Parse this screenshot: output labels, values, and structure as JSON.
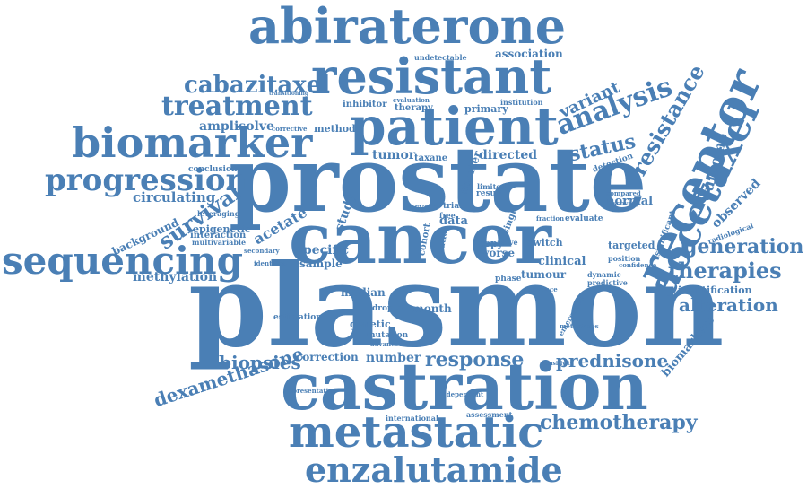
{
  "color": "#4a7fb5",
  "words": [
    {
      "id": "abiraterone",
      "text": "abiraterone"
    },
    {
      "id": "resistant",
      "text": "resistant"
    },
    {
      "id": "cabazitaxel",
      "text": "cabazitaxel"
    },
    {
      "id": "treatment",
      "text": "treatment"
    },
    {
      "id": "biomarker",
      "text": "biomarker"
    },
    {
      "id": "patient",
      "text": "patient"
    },
    {
      "id": "prostate",
      "text": "prostate"
    },
    {
      "id": "cancer",
      "text": "cancer"
    },
    {
      "id": "plasmon",
      "text": "plasmon"
    },
    {
      "id": "castration",
      "text": "castration"
    },
    {
      "id": "metastatic",
      "text": "metastatic"
    },
    {
      "id": "enzalutamide",
      "text": "enzalutamide"
    },
    {
      "id": "sequencing",
      "text": "sequencing"
    },
    {
      "id": "progression",
      "text": "progression"
    },
    {
      "id": "receptor",
      "text": "receptor"
    },
    {
      "id": "docetaxel",
      "text": "docetaxel"
    },
    {
      "id": "analysis",
      "text": "analysis"
    },
    {
      "id": "resistance",
      "text": "resistance"
    },
    {
      "id": "variant",
      "text": "variant"
    },
    {
      "id": "status",
      "text": "status"
    },
    {
      "id": "generation",
      "text": "generation"
    },
    {
      "id": "therapies",
      "text": "therapies"
    },
    {
      "id": "alteration",
      "text": "alteration"
    },
    {
      "id": "chemotherapy",
      "text": "chemotherapy"
    },
    {
      "id": "prednisone",
      "text": "prednisone"
    },
    {
      "id": "response",
      "text": "response"
    },
    {
      "id": "dexamethasone",
      "text": "dexamethasone"
    },
    {
      "id": "biopsies",
      "text": "biopsies"
    },
    {
      "id": "survival",
      "text": "survival"
    },
    {
      "id": "circulating",
      "text": "circulating"
    },
    {
      "id": "methylation",
      "text": "methylation"
    },
    {
      "id": "amplisolve",
      "text": "amplisolve"
    },
    {
      "id": "association",
      "text": "association"
    },
    {
      "id": "undetectable",
      "text": "undetectable"
    },
    {
      "id": "inhibitor",
      "text": "inhibitor"
    },
    {
      "id": "therapy",
      "text": "therapy"
    },
    {
      "id": "primary",
      "text": "primary"
    },
    {
      "id": "method",
      "text": "method"
    },
    {
      "id": "tumor",
      "text": "tumor"
    },
    {
      "id": "directed",
      "text": "directed"
    },
    {
      "id": "specific",
      "text": "specific"
    },
    {
      "id": "sample",
      "text": "sample"
    },
    {
      "id": "acetate",
      "text": "acetate"
    },
    {
      "id": "study",
      "text": "study"
    },
    {
      "id": "clinical",
      "text": "clinical"
    },
    {
      "id": "tumour",
      "text": "tumour"
    },
    {
      "id": "normal",
      "text": "normal"
    },
    {
      "id": "targeted",
      "text": "targeted"
    },
    {
      "id": "outcome",
      "text": "outcome"
    },
    {
      "id": "observed",
      "text": "observed"
    },
    {
      "id": "biomarkers",
      "text": "biomarkers"
    },
    {
      "id": "identification",
      "text": "identification"
    },
    {
      "id": "number",
      "text": "number"
    },
    {
      "id": "correction",
      "text": "correction"
    },
    {
      "id": "month",
      "text": "month"
    },
    {
      "id": "median",
      "text": "median"
    },
    {
      "id": "genetic",
      "text": "genetic"
    },
    {
      "id": "mutation",
      "text": "mutation"
    },
    {
      "id": "epigenetic",
      "text": "epigenetic"
    },
    {
      "id": "interaction",
      "text": "interaction"
    },
    {
      "id": "multivariable",
      "text": "multivariable"
    },
    {
      "id": "background",
      "text": "background"
    },
    {
      "id": "conclusion",
      "text": "conclusion"
    },
    {
      "id": "leveraging",
      "text": "leveraging"
    },
    {
      "id": "data",
      "text": "data"
    },
    {
      "id": "result",
      "text": "result"
    },
    {
      "id": "worse",
      "text": "worse"
    },
    {
      "id": "copy",
      "text": "copy"
    },
    {
      "id": "phase",
      "text": "phase"
    },
    {
      "id": "taxane",
      "text": "taxane"
    },
    {
      "id": "cohort",
      "text": "cohort"
    },
    {
      "id": "ratio",
      "text": "ratio"
    },
    {
      "id": "cycle",
      "text": "cycle"
    },
    {
      "id": "trial",
      "text": "trial"
    },
    {
      "id": "free",
      "text": "free"
    },
    {
      "id": "limited",
      "text": "limited"
    },
    {
      "id": "shorter",
      "text": "shorter"
    },
    {
      "id": "single",
      "text": "single"
    },
    {
      "id": "switch",
      "text": "switch"
    },
    {
      "id": "valve",
      "text": "valve"
    },
    {
      "id": "droplet",
      "text": "droplet"
    },
    {
      "id": "estimation",
      "text": "estimation"
    },
    {
      "id": "advanced",
      "text": "advanced"
    },
    {
      "id": "international",
      "text": "international"
    },
    {
      "id": "assessment",
      "text": "assessment"
    },
    {
      "id": "evaluate",
      "text": "evaluate"
    },
    {
      "id": "position",
      "text": "position"
    },
    {
      "id": "confidence",
      "text": "confidence"
    },
    {
      "id": "dynamic",
      "text": "dynamic"
    },
    {
      "id": "predictive",
      "text": "predictive"
    },
    {
      "id": "significant",
      "text": "significant"
    },
    {
      "id": "radiological",
      "text": "radiological"
    },
    {
      "id": "detection",
      "text": "detection"
    },
    {
      "id": "compared",
      "text": "compared"
    },
    {
      "id": "discovery",
      "text": "discovery"
    },
    {
      "id": "institution",
      "text": "institution"
    },
    {
      "id": "evaluation",
      "text": "evaluation"
    },
    {
      "id": "transitioning",
      "text": "transitioning"
    },
    {
      "id": "corrective",
      "text": "corrective"
    },
    {
      "id": "fraction",
      "text": "fraction"
    },
    {
      "id": "relevance",
      "text": "relevance"
    },
    {
      "id": "sensitivity",
      "text": "sensitivity"
    },
    {
      "id": "representative",
      "text": "representative"
    },
    {
      "id": "independent",
      "text": "independent"
    },
    {
      "id": "secondary",
      "text": "secondary"
    },
    {
      "id": "identifies",
      "text": "identifies"
    },
    {
      "id": "emergence",
      "text": "emergence"
    },
    {
      "id": "metastases",
      "text": "metastases"
    }
  ]
}
